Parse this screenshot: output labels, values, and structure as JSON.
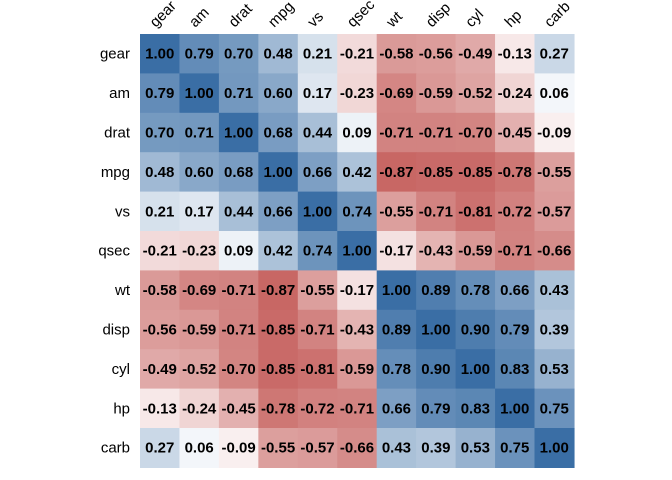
{
  "chart_data": {
    "type": "heatmap",
    "title": "",
    "row_labels": [
      "gear",
      "am",
      "drat",
      "mpg",
      "vs",
      "qsec",
      "wt",
      "disp",
      "cyl",
      "hp",
      "carb"
    ],
    "col_labels": [
      "gear",
      "am",
      "drat",
      "mpg",
      "vs",
      "qsec",
      "wt",
      "disp",
      "cyl",
      "hp",
      "carb"
    ],
    "values": [
      [
        "1.00",
        "0.79",
        "0.70",
        "0.48",
        "0.21",
        "-0.21",
        "-0.58",
        "-0.56",
        "-0.49",
        "-0.13",
        "0.27"
      ],
      [
        "0.79",
        "1.00",
        "0.71",
        "0.60",
        "0.17",
        "-0.23",
        "-0.69",
        "-0.59",
        "-0.52",
        "-0.24",
        "0.06"
      ],
      [
        "0.70",
        "0.71",
        "1.00",
        "0.68",
        "0.44",
        "0.09",
        "-0.71",
        "-0.71",
        "-0.70",
        "-0.45",
        "-0.09"
      ],
      [
        "0.48",
        "0.60",
        "0.68",
        "1.00",
        "0.66",
        "0.42",
        "-0.87",
        "-0.85",
        "-0.85",
        "-0.78",
        "-0.55"
      ],
      [
        "0.21",
        "0.17",
        "0.44",
        "0.66",
        "1.00",
        "0.74",
        "-0.55",
        "-0.71",
        "-0.81",
        "-0.72",
        "-0.57"
      ],
      [
        "-0.21",
        "-0.23",
        "0.09",
        "0.42",
        "0.74",
        "1.00",
        "-0.17",
        "-0.43",
        "-0.59",
        "-0.71",
        "-0.66"
      ],
      [
        "-0.58",
        "-0.69",
        "-0.71",
        "-0.87",
        "-0.55",
        "-0.17",
        "1.00",
        "0.89",
        "0.78",
        "0.66",
        "0.43"
      ],
      [
        "-0.56",
        "-0.59",
        "-0.71",
        "-0.85",
        "-0.71",
        "-0.43",
        "0.89",
        "1.00",
        "0.90",
        "0.79",
        "0.39"
      ],
      [
        "-0.49",
        "-0.52",
        "-0.70",
        "-0.85",
        "-0.81",
        "-0.59",
        "0.78",
        "0.90",
        "1.00",
        "0.83",
        "0.53"
      ],
      [
        "-0.13",
        "-0.24",
        "-0.45",
        "-0.78",
        "-0.72",
        "-0.71",
        "0.66",
        "0.79",
        "0.83",
        "1.00",
        "0.75"
      ],
      [
        "0.27",
        "0.06",
        "-0.09",
        "-0.55",
        "-0.57",
        "-0.66",
        "0.43",
        "0.39",
        "0.53",
        "0.75",
        "1.00"
      ]
    ],
    "color_scale": {
      "negative": "#c0504d",
      "neutral": "#ffffff",
      "positive": "#3a6ea5",
      "range": [
        -1,
        1
      ]
    },
    "legend": "none",
    "grid": false
  }
}
